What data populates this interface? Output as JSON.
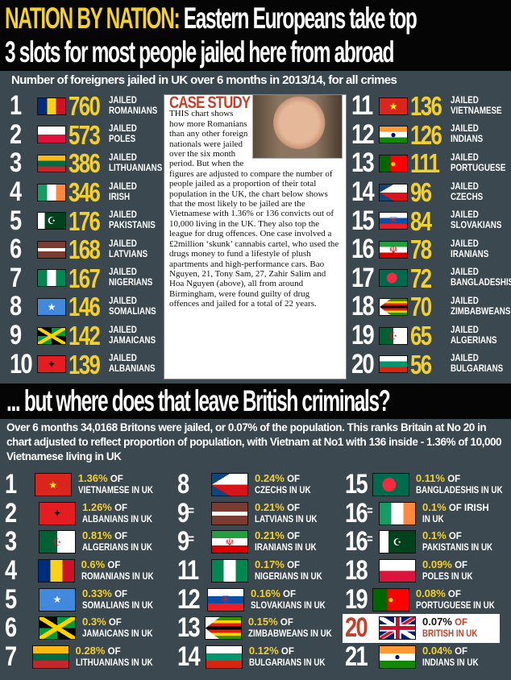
{
  "headline": {
    "highlight": "NATION BY NATION:",
    "line1": "Eastern Europeans take top",
    "line2": "3 slots for most people jailed here from abroad"
  },
  "section1": {
    "subtitle": "Number of foreigners jailed in UK over 6 months in 2013/14, for all crimes",
    "prefix": "JAILED",
    "left": [
      {
        "rank": "1",
        "count": "760",
        "nationality": "ROMANIANS",
        "flag": "flag-romania"
      },
      {
        "rank": "2",
        "count": "573",
        "nationality": "POLES",
        "flag": "flag-poland"
      },
      {
        "rank": "3",
        "count": "386",
        "nationality": "LITHUANIANS",
        "flag": "flag-lithuania"
      },
      {
        "rank": "4",
        "count": "346",
        "nationality": "IRISH",
        "flag": "flag-ireland"
      },
      {
        "rank": "5",
        "count": "176",
        "nationality": "PAKISTANIS",
        "flag": "flag-pakistan"
      },
      {
        "rank": "6",
        "count": "168",
        "nationality": "LATVIANS",
        "flag": "flag-latvia"
      },
      {
        "rank": "7",
        "count": "167",
        "nationality": "NIGERIANS",
        "flag": "flag-nigeria"
      },
      {
        "rank": "8",
        "count": "146",
        "nationality": "SOMALIANS",
        "flag": "flag-somalia"
      },
      {
        "rank": "9",
        "count": "142",
        "nationality": "JAMAICANS",
        "flag": "flag-jamaica"
      },
      {
        "rank": "10",
        "count": "139",
        "nationality": "ALBANIANS",
        "flag": "flag-albania"
      }
    ],
    "right": [
      {
        "rank": "11",
        "count": "136",
        "nationality": "VIETNAMESE",
        "flag": "flag-vietnam"
      },
      {
        "rank": "12",
        "count": "126",
        "nationality": "INDIANS",
        "flag": "flag-india"
      },
      {
        "rank": "13",
        "count": "111",
        "nationality": "PORTUGUESE",
        "flag": "flag-portugal"
      },
      {
        "rank": "14",
        "count": "96",
        "nationality": "CZECHS",
        "flag": "flag-czech"
      },
      {
        "rank": "15",
        "count": "84",
        "nationality": "SLOVAKIANS",
        "flag": "flag-slovakia"
      },
      {
        "rank": "16",
        "count": "78",
        "nationality": "IRANIANS",
        "flag": "flag-iran"
      },
      {
        "rank": "17",
        "count": "72",
        "nationality": "BANGLADESHIS",
        "flag": "flag-bangladesh"
      },
      {
        "rank": "18",
        "count": "70",
        "nationality": "ZIMBABWEANS",
        "flag": "flag-zimbabwe"
      },
      {
        "rank": "19",
        "count": "65",
        "nationality": "ALGERIANS",
        "flag": "flag-algeria"
      },
      {
        "rank": "20",
        "count": "56",
        "nationality": "BULGARIANS",
        "flag": "flag-bulgaria"
      }
    ],
    "case_study": {
      "heading": "CASE STUDY",
      "body": "THIS chart shows how more Romanians than any other foreign nationals were jailed over the six month period. But when the figures are adjusted to compare the number of people jailed as a proportion of their total population in the UK, the chart below shows that the most likely to be jailed are the Vietnamese with 1.36% or 136 convicts out of 10,000 living in the UK. They also top the league for drug offences. One case involved a £2million ‘skunk’ cannabis cartel, who used the drugs money to fund a lifestyle of plush apartments and high-performance cars. Bao Nguyen, 21, Tony Sam, 27, Zahir Salim and Hoa Nguyen (above), all from around Birmingham, were found guilty of drug offences and jailed for a total of 22 years."
    }
  },
  "section2": {
    "title": "... but where does that leave British criminals?",
    "subtitle": "Over 6 months 34,0168 Britons were jailed, or 0.07% of the population. This ranks Britain at No 20 in chart adjusted to reflect proportion of population, with Vietnam at No1 with 136 inside - 1.36% of 10,000 Vietnamese living in UK",
    "of": "OF",
    "columns": [
      [
        {
          "rank": "1",
          "eq": "",
          "pct": "1.36%",
          "label": "VIETNAMESE IN UK",
          "flag": "flag-vietnam"
        },
        {
          "rank": "2",
          "eq": "",
          "pct": "1.26%",
          "label": "ALBANIANS IN UK",
          "flag": "flag-albania"
        },
        {
          "rank": "3",
          "eq": "",
          "pct": "0.81%",
          "label": "ALGERIANS IN UK",
          "flag": "flag-algeria"
        },
        {
          "rank": "4",
          "eq": "",
          "pct": "0.6%",
          "label": "ROMANIANS IN UK",
          "flag": "flag-romania"
        },
        {
          "rank": "5",
          "eq": "",
          "pct": "0.33%",
          "label": "SOMALIANS IN UK",
          "flag": "flag-somalia"
        },
        {
          "rank": "6",
          "eq": "",
          "pct": "0.3%",
          "label": "JAMAICANS IN UK",
          "flag": "flag-jamaica"
        },
        {
          "rank": "7",
          "eq": "",
          "pct": "0.28%",
          "label": "LITHUANIANS IN UK",
          "flag": "flag-lithuania"
        }
      ],
      [
        {
          "rank": "8",
          "eq": "",
          "pct": "0.24%",
          "label": "CZECHS IN UK",
          "flag": "flag-czech"
        },
        {
          "rank": "9",
          "eq": "=",
          "pct": "0.21%",
          "label": "LATVIANS IN UK",
          "flag": "flag-latvia"
        },
        {
          "rank": "9",
          "eq": "=",
          "pct": "0.21%",
          "label": "IRANIANS IN UK",
          "flag": "flag-iran"
        },
        {
          "rank": "11",
          "eq": "",
          "pct": "0.17%",
          "label": "NIGERIANS IN UK",
          "flag": "flag-nigeria"
        },
        {
          "rank": "12",
          "eq": "",
          "pct": "0.16%",
          "label": "SLOVAKIANS IN UK",
          "flag": "flag-slovakia"
        },
        {
          "rank": "13",
          "eq": "",
          "pct": "0.15%",
          "label": "ZIMBABWEANS IN UK",
          "flag": "flag-zimbabwe"
        },
        {
          "rank": "14",
          "eq": "",
          "pct": "0.12%",
          "label": "BULGARIANS IN UK",
          "flag": "flag-bulgaria"
        }
      ],
      [
        {
          "rank": "15",
          "eq": "",
          "pct": "0.11%",
          "label": "BANGLADESHIS IN UK",
          "flag": "flag-bangladesh"
        },
        {
          "rank": "16",
          "eq": "=",
          "pct": "0.1%",
          "label": "IN UK",
          "of_extra": "OF IRISH",
          "flag": "flag-ireland"
        },
        {
          "rank": "16",
          "eq": "=",
          "pct": "0.1%",
          "label": "PAKISTANIS IN UK",
          "flag": "flag-pakistan"
        },
        {
          "rank": "18",
          "eq": "",
          "pct": "0.09%",
          "label": "POLES IN UK",
          "flag": "flag-poland"
        },
        {
          "rank": "19",
          "eq": "",
          "pct": "0.08%",
          "label": "PORTUGUESE IN UK",
          "flag": "flag-portugal"
        },
        {
          "rank": "20",
          "eq": "",
          "pct": "0.07%",
          "label": "BRITISH IN UK",
          "flag": "flag-uk",
          "highlight": true
        },
        {
          "rank": "21",
          "eq": "",
          "pct": "0.04%",
          "label": "INDIANS IN UK",
          "flag": "flag-india"
        }
      ]
    ]
  },
  "colors": {
    "accent": "#f3d02c",
    "panel": "#3c484f",
    "highlight_red": "#c2412b"
  }
}
